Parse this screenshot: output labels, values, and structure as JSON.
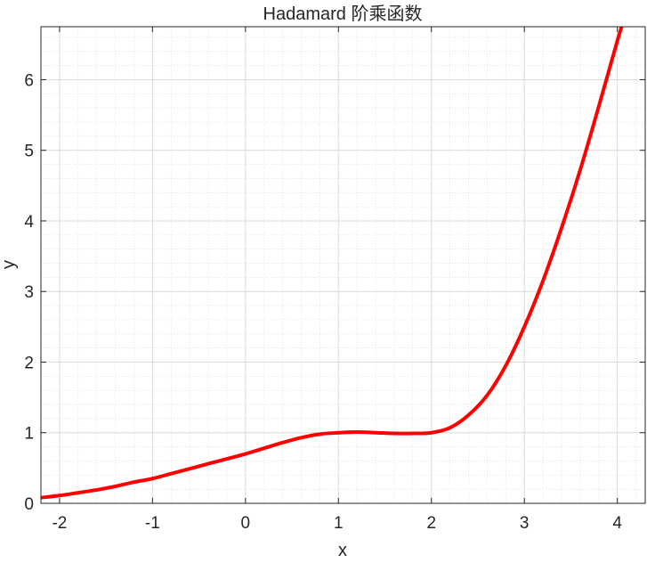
{
  "chart_data": {
    "type": "line",
    "title": "Hadamard 阶乘函数",
    "xlabel": "x",
    "ylabel": "y",
    "xlim": [
      -2.2,
      4.3
    ],
    "ylim": [
      0,
      6.75
    ],
    "xticks": [
      -2,
      -1,
      0,
      1,
      2,
      3,
      4
    ],
    "yticks": [
      0,
      1,
      2,
      3,
      4,
      5,
      6
    ],
    "grid": true,
    "minor_grid": true,
    "legend": "none",
    "series": [
      {
        "color": "#ff0000",
        "x": [
          -2.2,
          -2.0,
          -1.8,
          -1.6,
          -1.4,
          -1.2,
          -1.0,
          -0.8,
          -0.6,
          -0.4,
          -0.2,
          0.0,
          0.2,
          0.4,
          0.6,
          0.8,
          1.0,
          1.2,
          1.4,
          1.6,
          1.8,
          2.0,
          2.2,
          2.4,
          2.6,
          2.8,
          3.0,
          3.2,
          3.4,
          3.6,
          3.8,
          4.0,
          4.1
        ],
        "y": [
          0.08,
          0.11,
          0.15,
          0.19,
          0.24,
          0.3,
          0.35,
          0.42,
          0.49,
          0.56,
          0.63,
          0.7,
          0.78,
          0.86,
          0.93,
          0.98,
          1.0,
          1.01,
          1.0,
          0.99,
          0.99,
          1.0,
          1.07,
          1.25,
          1.53,
          1.95,
          2.5,
          3.15,
          3.9,
          4.72,
          5.62,
          6.55,
          6.98
        ]
      }
    ]
  }
}
